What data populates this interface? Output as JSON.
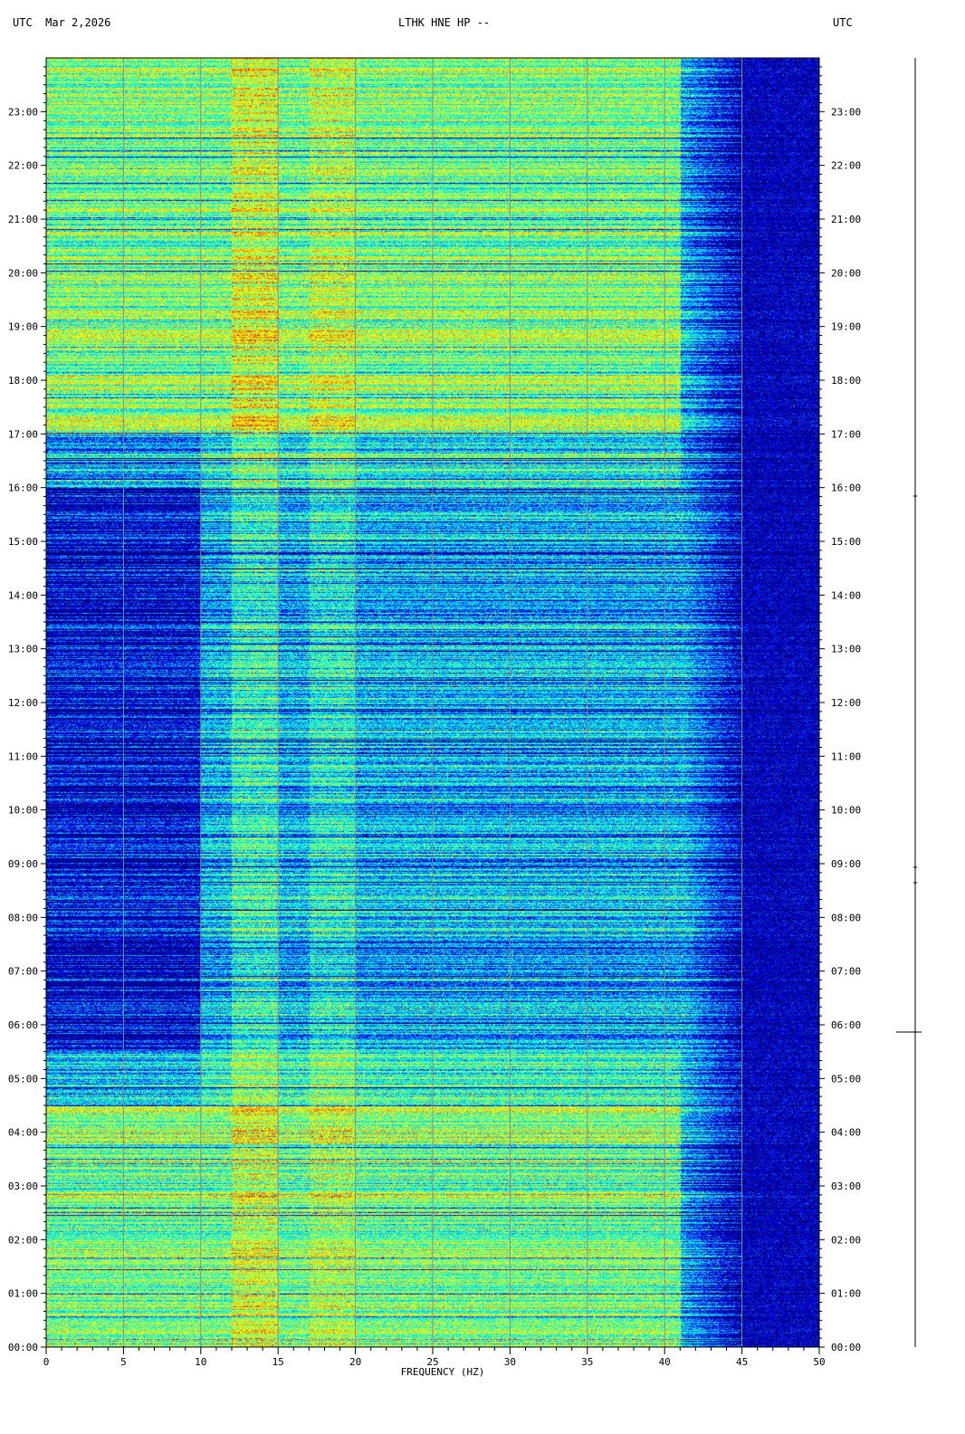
{
  "header": {
    "timezone_left": "UTC",
    "date": "Mar 2,2026",
    "title": "LTHK HNE HP --",
    "timezone_right": "UTC"
  },
  "chart_data": {
    "type": "heatmap",
    "title": "LTHK HNE HP --",
    "xlabel": "FREQUENCY (HZ)",
    "ylabel": "",
    "xlim": [
      0,
      50
    ],
    "ylim": [
      "00:00",
      "24:00"
    ],
    "x_ticks": [
      "0",
      "5",
      "10",
      "15",
      "20",
      "25",
      "30",
      "35",
      "40",
      "45",
      "50"
    ],
    "y_ticks": [
      "00:00",
      "01:00",
      "02:00",
      "03:00",
      "04:00",
      "05:00",
      "06:00",
      "07:00",
      "08:00",
      "09:00",
      "10:00",
      "11:00",
      "12:00",
      "13:00",
      "14:00",
      "15:00",
      "16:00",
      "17:00",
      "18:00",
      "19:00",
      "20:00",
      "21:00",
      "22:00",
      "23:00"
    ],
    "grid": true,
    "colormap": [
      "#00007f",
      "#0000ff",
      "#00b0ff",
      "#00ffe0",
      "#a0ff60",
      "#ffff00",
      "#ff8000",
      "#d00000"
    ],
    "grid_color": "#8c8c8c"
  }
}
